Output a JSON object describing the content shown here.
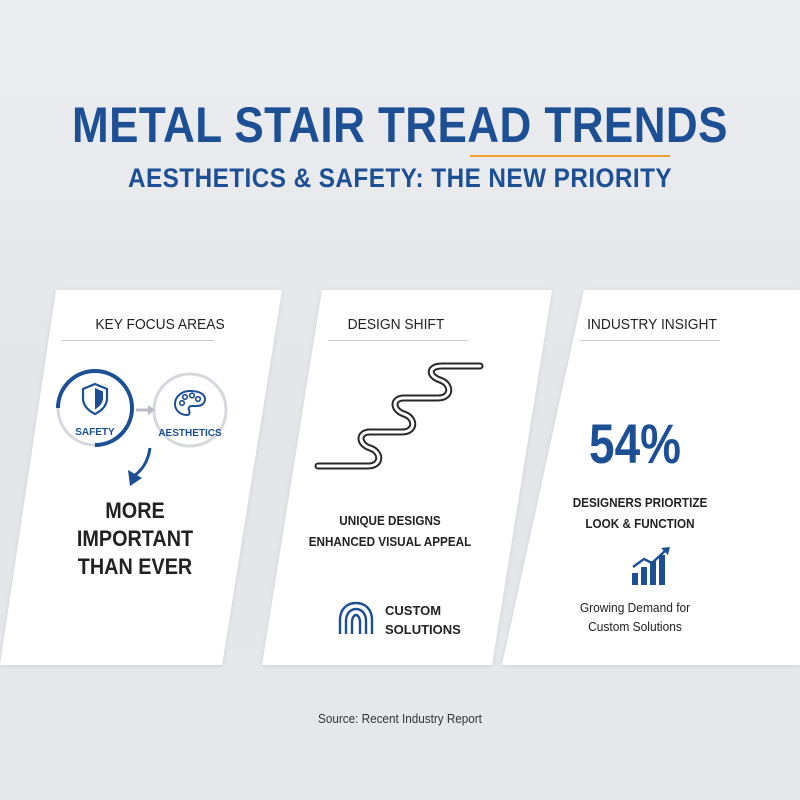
{
  "header": {
    "title": "METAL STAIR TREAD TRENDS",
    "subtitle": "AESTHETICS & SAFETY: THE NEW PRIORITY"
  },
  "cards": [
    {
      "title": "KEY FOCUS AREAS",
      "circle_left_label": "SAFETY",
      "circle_right_label": "AESTHETICS",
      "statement_lines": [
        "MORE",
        "IMPORTANT",
        "THAN EVER"
      ],
      "icons": [
        "shield-icon",
        "palette-icon",
        "arrow-right-icon",
        "curved-arrow-down-icon"
      ]
    },
    {
      "title": "DESIGN SHIFT",
      "line1": "UNIQUE DESIGNS",
      "line2": "ENHANCED VISUAL APPEAL",
      "custom_lines": [
        "CUSTOM",
        "SOLUTIONS"
      ],
      "icons": [
        "stair-profile-icon",
        "arches-icon"
      ]
    },
    {
      "title": "INDUSTRY INSIGHT",
      "stat": "54%",
      "stat_lines": [
        "DESIGNERS PRIORTIZE",
        "LOOK & FUNCTION"
      ],
      "trend_lines": [
        "Growing Demand for",
        "Custom Solutions"
      ],
      "icons": [
        "growth-chart-icon"
      ]
    }
  ],
  "footer": {
    "source": "Source: Recent Industry Report"
  },
  "colors": {
    "accent": "#1c4f94",
    "highlight": "#f0a030",
    "card": "#ffffff",
    "background": "#e6e8eb"
  }
}
